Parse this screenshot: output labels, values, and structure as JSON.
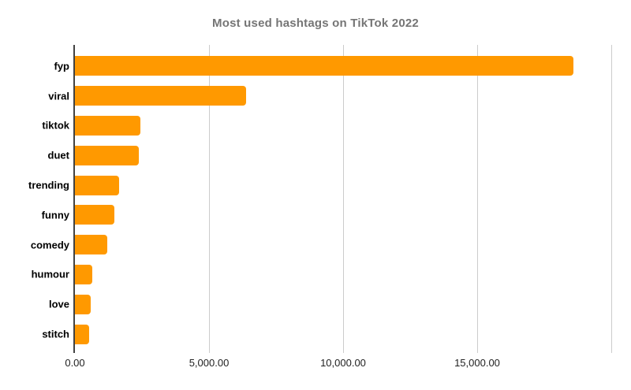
{
  "title": "Most used hashtags on TikTok 2022",
  "chart_data": {
    "type": "bar",
    "orientation": "horizontal",
    "title": "Most used hashtags on TikTok 2022",
    "categories": [
      "fyp",
      "viral",
      "tiktok",
      "duet",
      "trending",
      "funny",
      "comedy",
      "humour",
      "love",
      "stitch"
    ],
    "values": [
      18600,
      6380,
      2450,
      2380,
      1640,
      1480,
      1210,
      660,
      600,
      540
    ],
    "xlabel": "",
    "ylabel": "",
    "xlim": [
      0,
      20000
    ],
    "x_ticks": [
      {
        "value": 0,
        "label": "0.00"
      },
      {
        "value": 5000,
        "label": "5,000.00"
      },
      {
        "value": 10000,
        "label": "10,000.00"
      },
      {
        "value": 15000,
        "label": "15,000.00"
      },
      {
        "value": 20000,
        "label": ""
      }
    ],
    "grid": true,
    "legend": false,
    "colors": {
      "bar": "#FF9900",
      "title": "#757575",
      "gridline": "#CCCCCC",
      "axis": "#424242",
      "category_label": "#000000",
      "tick_label": "#212121"
    }
  }
}
